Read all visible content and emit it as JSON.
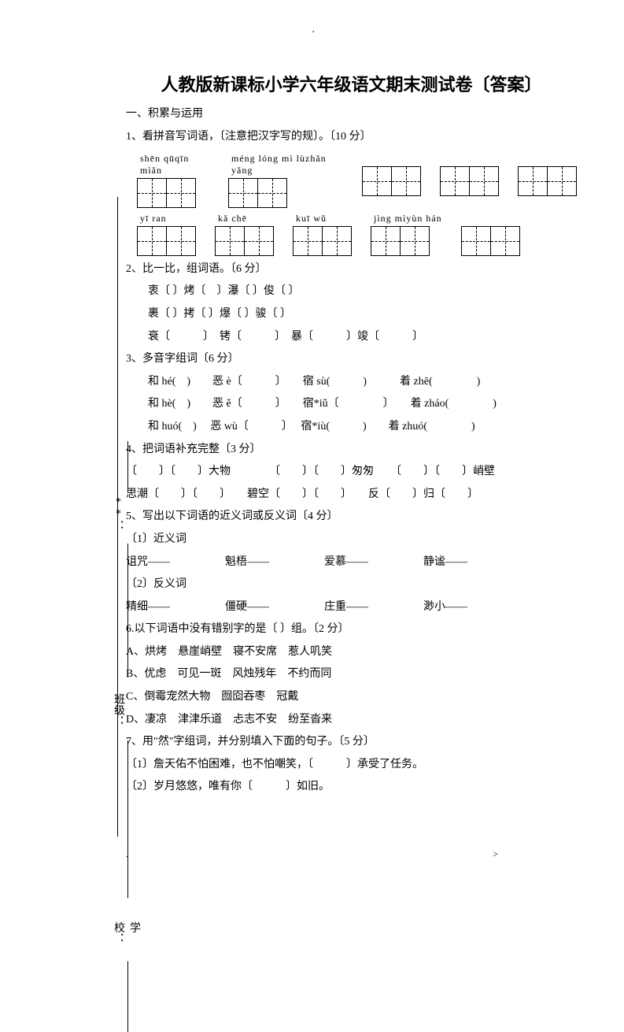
{
  "top_dot": ".",
  "title": "人教版新课标小学六年级语文期末测试卷〔答案〕",
  "binding_labels": {
    "l1": "**：",
    "l2": "班级：",
    "l3": "学校："
  },
  "section1": {
    "header": "一、积累与运用",
    "q1": {
      "text": "1、看拼音写词语，〔注意把汉字写的规〕。〔10 分〕",
      "row1": [
        {
          "pinyin": "shēn  qūqīn  mìǎn",
          "boxes": 2
        },
        {
          "pinyin": "méng lóng  mì  lùzhǎn yǎng",
          "boxes": 2
        },
        {
          "pinyin": "",
          "boxes": 2
        },
        {
          "pinyin": "",
          "boxes": 2
        },
        {
          "pinyin": "",
          "boxes": 2
        }
      ],
      "row2": [
        {
          "pinyin": "yī  ran",
          "boxes": 2
        },
        {
          "pinyin": "kǎ  chē",
          "boxes": 2
        },
        {
          "pinyin": "kuī  wǔ",
          "boxes": 2
        },
        {
          "pinyin": "jìng  mìyùn  hán",
          "boxes": 2
        },
        {
          "pinyin": "",
          "boxes": 2
        }
      ]
    },
    "q2": {
      "text": "2、比一比，组词语。〔6 分〕",
      "lines": [
        "衷〔 〕烤〔　〕瀑〔 〕俊〔 〕",
        "裹〔 〕拷〔 〕爆〔 〕骏〔 〕",
        "衰〔　　　〕　铐〔　　　〕　暴〔　　　〕竣〔　　　〕"
      ]
    },
    "q3": {
      "text": "3、多音字组词〔6 分〕",
      "lines": [
        "和 hé(　)　　恶 è〔　　　〕　　宿 sù(　　　)　　　着 zhē(　　　　)",
        "和 hè(　)　　恶 ě〔　　　〕　　宿*iǔ〔　　　　〕　　着 zháo(　　　　)",
        "和 huó(　)　 恶 wù〔　　　〕　 宿*iù(　　　)　　着 zhuó(　　　　)"
      ]
    },
    "q4": {
      "text": "4、把词语补充完整〔3 分〕",
      "lines": [
        "〔　　〕〔　　〕大物　　　　〔　　〕〔　　〕匆匆　　〔　　〕〔　　〕峭壁",
        "思潮〔　　〕〔　　〕　　碧空〔　　〕〔　　〕　　反〔　　〕归〔　　〕"
      ]
    },
    "q5": {
      "text": "5、写出以下词语的近义词或反义词〔4 分〕",
      "sub1": "〔1〕近义词",
      "line1": "诅咒——　　　　　魁梧——　　　　　爱慕——　　　　　静谧——",
      "sub2": "〔2〕反义词",
      "line2": "精细——　　　　　僵硬——　　　　　庄重——　　　　　渺小——"
    },
    "q6": {
      "text": "6.以下词语中没有错别字的是〔  〕组。〔2 分〕",
      "options": [
        "A、烘烤　悬崖峭壁　寝不安席　惹人叽笑",
        "B、优虑　可见一斑　风烛残年　不约而同",
        "C、倒霉宠然大物　囫囵吞枣　冠戴",
        "D、凄凉　津津乐道　忐志不安　纷至沓来"
      ]
    },
    "q7": {
      "text": "7、用\"然\"字组词，并分别填入下面的句子。〔5 分〕",
      "lines": [
        "〔1〕詹天佑不怕困难，也不怕嘲笑，〔　　　〕承受了任务。",
        "〔2〕岁月悠悠，唯有你〔　　　〕如旧。"
      ]
    }
  },
  "bottom_left": ".",
  "bottom_right": ">"
}
